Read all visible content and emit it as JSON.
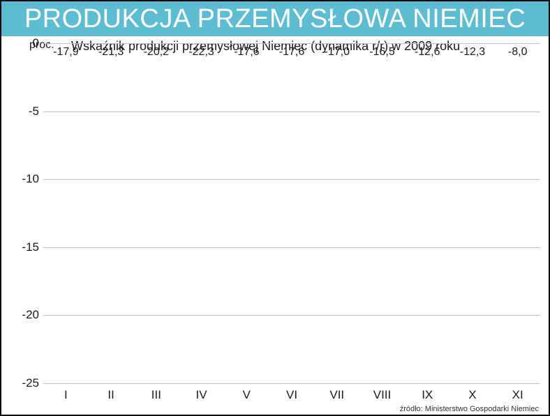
{
  "title": "PRODUKCJA PRZEMYSŁOWA NIEMIEC",
  "subtitle": "Wskaźnik produkcji przemysłowej Niemiec (dynamika r/r) w 2009 roku",
  "y_unit": "proc.",
  "source": "źródło: Ministerstwo Gospodarki Niemiec",
  "chart": {
    "type": "bar",
    "categories": [
      "I",
      "II",
      "III",
      "IV",
      "V",
      "VI",
      "VII",
      "VIII",
      "IX",
      "X",
      "XI"
    ],
    "values": [
      -17.9,
      -21.3,
      -20.2,
      -22.3,
      -17.6,
      -17.6,
      -17.0,
      -16.5,
      -12.6,
      -12.3,
      -8.0
    ],
    "value_labels": [
      "-17,9",
      "-21,3",
      "-20,2",
      "-22,3",
      "-17,6",
      "-17,6",
      "-17,0",
      "-16,5",
      "-12,6",
      "-12,3",
      "-8,0"
    ],
    "ylim": [
      -25,
      0
    ],
    "ytick_step": 5,
    "yticks": [
      0,
      -5,
      -10,
      -15,
      -20,
      -25
    ],
    "bar_color": "#5dbcd2",
    "grid_color": "#bfbfbf",
    "background_color": "#ffffff",
    "title_bar_color": "#5dbcd2",
    "title_color": "#ffffff",
    "axis_font_size": 17,
    "label_font_size": 16,
    "title_font_size": 38,
    "subtitle_font_size": 18
  }
}
